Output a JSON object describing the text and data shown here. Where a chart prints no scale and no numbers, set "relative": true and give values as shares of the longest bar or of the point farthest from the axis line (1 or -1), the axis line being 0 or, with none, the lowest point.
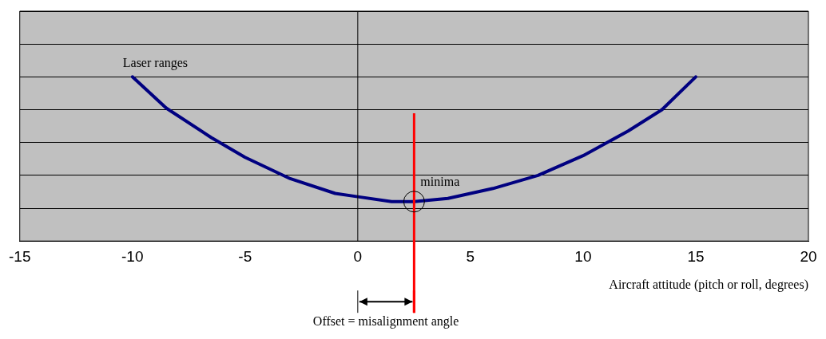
{
  "chart_data": {
    "type": "line",
    "relative": true,
    "xlabel": "Aircraft attitude (pitch or roll, degrees)",
    "x": [
      -10,
      -8.5,
      -6.5,
      -5,
      -3,
      -1,
      0,
      1.5,
      2.5,
      4,
      6,
      8,
      10,
      12,
      13.5,
      15
    ],
    "series": [
      {
        "color": "#000080",
        "values": [
          1,
          0.81,
          0.63,
          0.51,
          0.38,
          0.29,
          0.27,
          0.24,
          0.24,
          0.26,
          0.32,
          0.4,
          0.52,
          0.67,
          0.8,
          1
        ]
      }
    ],
    "xlim": [
      -15,
      20
    ],
    "xticks": [
      -15,
      -10,
      -5,
      0,
      5,
      10,
      15,
      20
    ],
    "grid": "y",
    "marker": "none",
    "line_style": "solid",
    "legend": false,
    "ref_lines": [
      {
        "axis": "x",
        "value": 0,
        "color": "#000000"
      },
      {
        "axis": "x",
        "value": 2.5,
        "color": "#ff0000"
      }
    ],
    "annotations": [
      {
        "text": "Laser ranges",
        "x": -10,
        "y": 1
      },
      {
        "text": "minima",
        "x": 2.5,
        "y": 0.24
      },
      "Offset = misalignment angle"
    ]
  }
}
